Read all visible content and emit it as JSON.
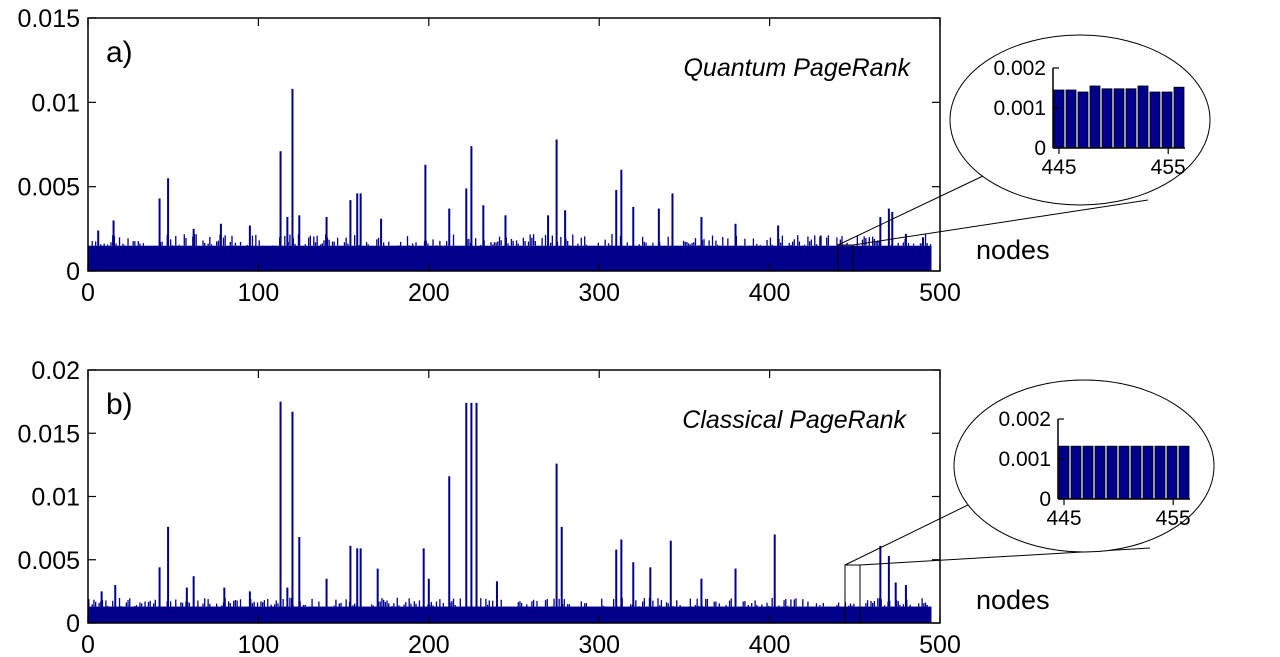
{
  "chart_data": [
    {
      "type": "bar",
      "panel_label": "a)",
      "title": "Quantum PageRank",
      "xlabel": "nodes",
      "ylabel": "",
      "xlim": [
        0,
        500
      ],
      "ylim": [
        0,
        0.015
      ],
      "x_ticks": [
        "0",
        "100",
        "200",
        "300",
        "400",
        "500"
      ],
      "y_ticks": [
        "0",
        "0.005",
        "0.01",
        "0.015"
      ],
      "baseline": 0.0015,
      "n_nodes": 495,
      "bar_color": "#00008b",
      "peaks": [
        [
          6,
          0.0024
        ],
        [
          15,
          0.003
        ],
        [
          42,
          0.0043
        ],
        [
          47,
          0.0055
        ],
        [
          62,
          0.0025
        ],
        [
          78,
          0.0028
        ],
        [
          95,
          0.0027
        ],
        [
          113,
          0.0071
        ],
        [
          117,
          0.0032
        ],
        [
          120,
          0.0108
        ],
        [
          124,
          0.0033
        ],
        [
          140,
          0.0032
        ],
        [
          154,
          0.0042
        ],
        [
          158,
          0.0046
        ],
        [
          160,
          0.0046
        ],
        [
          172,
          0.0031
        ],
        [
          198,
          0.0063
        ],
        [
          212,
          0.0037
        ],
        [
          222,
          0.0049
        ],
        [
          225,
          0.0074
        ],
        [
          232,
          0.0039
        ],
        [
          245,
          0.0033
        ],
        [
          270,
          0.0033
        ],
        [
          275,
          0.0078
        ],
        [
          280,
          0.0036
        ],
        [
          310,
          0.0048
        ],
        [
          313,
          0.006
        ],
        [
          320,
          0.0038
        ],
        [
          335,
          0.0037
        ],
        [
          343,
          0.0046
        ],
        [
          360,
          0.0032
        ],
        [
          380,
          0.0028
        ],
        [
          405,
          0.0027
        ],
        [
          430,
          0.0021
        ],
        [
          465,
          0.0032
        ],
        [
          470,
          0.0037
        ],
        [
          472,
          0.0035
        ],
        [
          480,
          0.0022
        ],
        [
          490,
          0.002
        ]
      ],
      "inset": {
        "categories": [
          445,
          446,
          447,
          448,
          449,
          450,
          451,
          452,
          453,
          454,
          455
        ],
        "values": [
          0.00145,
          0.00145,
          0.0014,
          0.00155,
          0.00148,
          0.00148,
          0.00148,
          0.00155,
          0.0014,
          0.0014,
          0.00152
        ],
        "ylim": [
          0,
          0.002
        ],
        "y_ticks": [
          "0",
          "0.001",
          "0.002"
        ],
        "x_ticks": [
          "445",
          "455"
        ]
      }
    },
    {
      "type": "bar",
      "panel_label": "b)",
      "title": "Classical PageRank",
      "xlabel": "nodes",
      "ylabel": "",
      "xlim": [
        0,
        500
      ],
      "ylim": [
        0,
        0.02
      ],
      "x_ticks": [
        "0",
        "100",
        "200",
        "300",
        "400",
        "500"
      ],
      "y_ticks": [
        "0",
        "0.005",
        "0.01",
        "0.015",
        "0.02"
      ],
      "baseline": 0.0013,
      "n_nodes": 495,
      "bar_color": "#00008b",
      "peaks": [
        [
          8,
          0.0025
        ],
        [
          16,
          0.003
        ],
        [
          42,
          0.0044
        ],
        [
          47,
          0.0076
        ],
        [
          58,
          0.0028
        ],
        [
          62,
          0.0037
        ],
        [
          80,
          0.0028
        ],
        [
          95,
          0.0025
        ],
        [
          113,
          0.0175
        ],
        [
          117,
          0.0028
        ],
        [
          120,
          0.0167
        ],
        [
          124,
          0.0068
        ],
        [
          140,
          0.0035
        ],
        [
          154,
          0.0061
        ],
        [
          158,
          0.0059
        ],
        [
          160,
          0.0059
        ],
        [
          170,
          0.0043
        ],
        [
          197,
          0.0059
        ],
        [
          200,
          0.0035
        ],
        [
          212,
          0.0116
        ],
        [
          222,
          0.0174
        ],
        [
          225,
          0.0174
        ],
        [
          228,
          0.0174
        ],
        [
          240,
          0.0033
        ],
        [
          275,
          0.0126
        ],
        [
          278,
          0.0076
        ],
        [
          310,
          0.0058
        ],
        [
          313,
          0.0066
        ],
        [
          320,
          0.0048
        ],
        [
          330,
          0.0044
        ],
        [
          342,
          0.0065
        ],
        [
          360,
          0.0035
        ],
        [
          380,
          0.0043
        ],
        [
          403,
          0.007
        ],
        [
          465,
          0.0061
        ],
        [
          470,
          0.0053
        ],
        [
          474,
          0.0032
        ],
        [
          480,
          0.003
        ]
      ],
      "inset": {
        "categories": [
          445,
          446,
          447,
          448,
          449,
          450,
          451,
          452,
          453,
          454,
          455
        ],
        "values": [
          0.00132,
          0.00132,
          0.00132,
          0.00132,
          0.00132,
          0.00132,
          0.00132,
          0.00132,
          0.00132,
          0.00132,
          0.00132
        ],
        "ylim": [
          0,
          0.002
        ],
        "y_ticks": [
          "0",
          "0.001",
          "0.002"
        ],
        "x_ticks": [
          "445",
          "455"
        ]
      }
    }
  ]
}
